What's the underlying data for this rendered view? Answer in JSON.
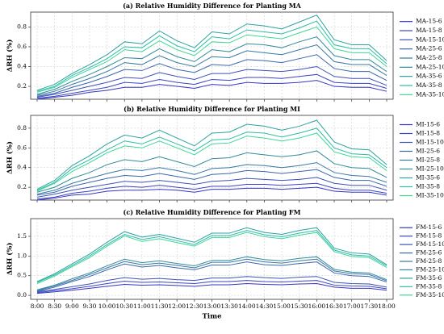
{
  "chart_data": [
    {
      "type": "line",
      "title": "(a) Relative Humidity Difference for Planting MA",
      "ylabel": "ΔRH (%)",
      "ylim": [
        0.07,
        0.95
      ],
      "yticks": [
        0.2,
        0.4,
        0.6,
        0.8
      ],
      "grid": true,
      "legend": "outside right",
      "series": [
        {
          "name": "MA-15-6",
          "color": "#3434c8",
          "values": [
            0.07,
            0.09,
            0.11,
            0.14,
            0.16,
            0.19,
            0.19,
            0.22,
            0.2,
            0.18,
            0.22,
            0.21,
            0.24,
            0.23,
            0.23,
            0.24,
            0.26,
            0.2,
            0.19,
            0.19,
            0.15
          ]
        },
        {
          "name": "MA-15-8",
          "color": "#3a44c2",
          "values": [
            0.08,
            0.1,
            0.13,
            0.16,
            0.19,
            0.24,
            0.23,
            0.27,
            0.24,
            0.22,
            0.27,
            0.26,
            0.29,
            0.29,
            0.28,
            0.3,
            0.32,
            0.24,
            0.23,
            0.23,
            0.18
          ]
        },
        {
          "name": "MA-15-10",
          "color": "#3d52ba",
          "values": [
            0.09,
            0.12,
            0.16,
            0.2,
            0.24,
            0.29,
            0.28,
            0.34,
            0.3,
            0.27,
            0.33,
            0.33,
            0.37,
            0.36,
            0.35,
            0.37,
            0.4,
            0.3,
            0.28,
            0.28,
            0.21
          ]
        },
        {
          "name": "MA-25-6",
          "color": "#3b66ae",
          "values": [
            0.1,
            0.13,
            0.19,
            0.24,
            0.3,
            0.37,
            0.36,
            0.43,
            0.37,
            0.34,
            0.42,
            0.41,
            0.47,
            0.46,
            0.44,
            0.48,
            0.52,
            0.38,
            0.35,
            0.35,
            0.26
          ]
        },
        {
          "name": "MA-25-8",
          "color": "#3778a4",
          "values": [
            0.11,
            0.15,
            0.22,
            0.28,
            0.35,
            0.44,
            0.42,
            0.51,
            0.44,
            0.4,
            0.5,
            0.49,
            0.56,
            0.54,
            0.52,
            0.57,
            0.62,
            0.45,
            0.42,
            0.42,
            0.31
          ]
        },
        {
          "name": "MA-25-10",
          "color": "#318b9b",
          "values": [
            0.12,
            0.17,
            0.25,
            0.32,
            0.4,
            0.49,
            0.48,
            0.58,
            0.5,
            0.45,
            0.57,
            0.55,
            0.63,
            0.62,
            0.59,
            0.65,
            0.7,
            0.51,
            0.47,
            0.47,
            0.35
          ]
        },
        {
          "name": "MA-35-6",
          "color": "#2ba3a2",
          "values": [
            0.16,
            0.22,
            0.33,
            0.42,
            0.52,
            0.65,
            0.63,
            0.76,
            0.66,
            0.59,
            0.75,
            0.73,
            0.83,
            0.81,
            0.78,
            0.85,
            0.92,
            0.67,
            0.62,
            0.62,
            0.46
          ]
        },
        {
          "name": "MA-35-8",
          "color": "#2dbda6",
          "values": [
            0.15,
            0.2,
            0.31,
            0.39,
            0.48,
            0.6,
            0.59,
            0.71,
            0.61,
            0.55,
            0.7,
            0.68,
            0.77,
            0.75,
            0.73,
            0.79,
            0.86,
            0.62,
            0.58,
            0.58,
            0.43
          ]
        },
        {
          "name": "MA-35-10",
          "color": "#3dd896",
          "values": [
            0.14,
            0.19,
            0.29,
            0.37,
            0.45,
            0.57,
            0.55,
            0.66,
            0.57,
            0.51,
            0.65,
            0.64,
            0.72,
            0.7,
            0.68,
            0.74,
            0.8,
            0.58,
            0.54,
            0.54,
            0.4
          ]
        }
      ]
    },
    {
      "type": "line",
      "title": "(b) Relative Humidity Difference for Planting MI",
      "ylabel": "ΔRH (%)",
      "ylim": [
        0.07,
        0.93
      ],
      "yticks": [
        0.2,
        0.4,
        0.6,
        0.8
      ],
      "grid": true,
      "legend": "outside right",
      "series": [
        {
          "name": "MI-15-6",
          "color": "#3434c8",
          "values": [
            0.07,
            0.09,
            0.12,
            0.13,
            0.16,
            0.17,
            0.17,
            0.18,
            0.17,
            0.15,
            0.18,
            0.18,
            0.19,
            0.19,
            0.18,
            0.19,
            0.2,
            0.16,
            0.15,
            0.15,
            0.12
          ]
        },
        {
          "name": "MI-15-8",
          "color": "#3a44c2",
          "values": [
            0.08,
            0.1,
            0.14,
            0.16,
            0.19,
            0.21,
            0.2,
            0.22,
            0.2,
            0.18,
            0.21,
            0.21,
            0.23,
            0.23,
            0.22,
            0.23,
            0.24,
            0.19,
            0.17,
            0.17,
            0.14
          ]
        },
        {
          "name": "MI-15-10",
          "color": "#3d52ba",
          "values": [
            0.1,
            0.13,
            0.17,
            0.2,
            0.23,
            0.26,
            0.25,
            0.27,
            0.25,
            0.23,
            0.26,
            0.27,
            0.29,
            0.28,
            0.27,
            0.28,
            0.3,
            0.24,
            0.22,
            0.22,
            0.17
          ]
        },
        {
          "name": "MI-25-6",
          "color": "#3b66ae",
          "values": [
            0.12,
            0.15,
            0.21,
            0.25,
            0.29,
            0.32,
            0.31,
            0.34,
            0.31,
            0.28,
            0.33,
            0.34,
            0.37,
            0.36,
            0.34,
            0.36,
            0.38,
            0.3,
            0.27,
            0.27,
            0.21
          ]
        },
        {
          "name": "MI-25-8",
          "color": "#3778a4",
          "values": [
            0.13,
            0.17,
            0.24,
            0.29,
            0.34,
            0.38,
            0.37,
            0.4,
            0.37,
            0.33,
            0.39,
            0.4,
            0.43,
            0.42,
            0.4,
            0.42,
            0.45,
            0.35,
            0.32,
            0.31,
            0.25
          ]
        },
        {
          "name": "MI-25-10",
          "color": "#318b9b",
          "values": [
            0.15,
            0.2,
            0.29,
            0.35,
            0.43,
            0.48,
            0.46,
            0.51,
            0.46,
            0.41,
            0.49,
            0.5,
            0.55,
            0.53,
            0.51,
            0.53,
            0.57,
            0.44,
            0.4,
            0.39,
            0.3
          ]
        },
        {
          "name": "MI-35-6",
          "color": "#2ba3a2",
          "values": [
            0.18,
            0.27,
            0.42,
            0.52,
            0.64,
            0.73,
            0.7,
            0.78,
            0.7,
            0.62,
            0.75,
            0.76,
            0.84,
            0.82,
            0.78,
            0.82,
            0.88,
            0.66,
            0.59,
            0.58,
            0.43
          ]
        },
        {
          "name": "MI-35-8",
          "color": "#2dbda6",
          "values": [
            0.17,
            0.25,
            0.39,
            0.48,
            0.58,
            0.67,
            0.64,
            0.71,
            0.64,
            0.57,
            0.68,
            0.69,
            0.76,
            0.75,
            0.71,
            0.75,
            0.8,
            0.6,
            0.54,
            0.53,
            0.4
          ]
        },
        {
          "name": "MI-35-10",
          "color": "#3dd896",
          "values": [
            0.16,
            0.24,
            0.36,
            0.45,
            0.55,
            0.62,
            0.6,
            0.67,
            0.6,
            0.53,
            0.64,
            0.65,
            0.72,
            0.7,
            0.67,
            0.7,
            0.75,
            0.56,
            0.51,
            0.5,
            0.37
          ]
        }
      ]
    },
    {
      "type": "line",
      "title": "(c) Relative Humidity Difference for Planting FM",
      "ylabel": "ΔRH (%)",
      "xlabel": "Time",
      "categories": [
        "8:00",
        "8:30",
        "9:00",
        "9:30",
        "10:00",
        "10:30",
        "11:00",
        "11:30",
        "12:00",
        "12:30",
        "13:00",
        "13:30",
        "14:00",
        "14:30",
        "15:00",
        "15:30",
        "16:00",
        "16:30",
        "17:00",
        "17:30",
        "18:00"
      ],
      "ylim": [
        -0.1,
        1.95
      ],
      "yticks": [
        {
          "value": 0,
          "label": "0.0"
        },
        0.5,
        {
          "value": 1,
          "label": "1.0"
        },
        1.5
      ],
      "grid": true,
      "legend": "outside right",
      "series": [
        {
          "name": "FM-15-6",
          "color": "#3434c8",
          "values": [
            0.05,
            0.09,
            0.13,
            0.18,
            0.23,
            0.28,
            0.26,
            0.27,
            0.25,
            0.23,
            0.27,
            0.27,
            0.3,
            0.28,
            0.27,
            0.29,
            0.3,
            0.21,
            0.18,
            0.18,
            0.13
          ]
        },
        {
          "name": "FM-15-8",
          "color": "#3a44c2",
          "values": [
            0.07,
            0.12,
            0.17,
            0.23,
            0.3,
            0.36,
            0.33,
            0.34,
            0.32,
            0.3,
            0.35,
            0.35,
            0.38,
            0.35,
            0.34,
            0.36,
            0.38,
            0.26,
            0.24,
            0.23,
            0.17
          ]
        },
        {
          "name": "FM-15-10",
          "color": "#3d52ba",
          "values": [
            0.09,
            0.15,
            0.22,
            0.29,
            0.38,
            0.45,
            0.41,
            0.43,
            0.4,
            0.38,
            0.44,
            0.44,
            0.48,
            0.45,
            0.43,
            0.46,
            0.48,
            0.33,
            0.3,
            0.29,
            0.21
          ]
        },
        {
          "name": "FM-25-6",
          "color": "#3b66ae",
          "values": [
            0.1,
            0.21,
            0.35,
            0.48,
            0.65,
            0.8,
            0.72,
            0.76,
            0.7,
            0.65,
            0.77,
            0.77,
            0.85,
            0.78,
            0.76,
            0.81,
            0.85,
            0.57,
            0.5,
            0.48,
            0.34
          ]
        },
        {
          "name": "FM-25-8",
          "color": "#3778a4",
          "values": [
            0.12,
            0.24,
            0.38,
            0.53,
            0.7,
            0.86,
            0.78,
            0.82,
            0.76,
            0.7,
            0.84,
            0.84,
            0.92,
            0.85,
            0.82,
            0.88,
            0.92,
            0.62,
            0.55,
            0.53,
            0.37
          ]
        },
        {
          "name": "FM-25-10",
          "color": "#318b9b",
          "values": [
            0.14,
            0.26,
            0.42,
            0.57,
            0.75,
            0.92,
            0.83,
            0.88,
            0.81,
            0.75,
            0.89,
            0.89,
            0.98,
            0.91,
            0.88,
            0.94,
            0.98,
            0.66,
            0.59,
            0.57,
            0.4
          ]
        },
        {
          "name": "FM-35-6",
          "color": "#2ba3a2",
          "values": [
            0.35,
            0.55,
            0.8,
            1.05,
            1.35,
            1.62,
            1.48,
            1.55,
            1.45,
            1.35,
            1.58,
            1.58,
            1.72,
            1.6,
            1.55,
            1.65,
            1.72,
            1.2,
            1.08,
            1.05,
            0.78
          ]
        },
        {
          "name": "FM-35-8",
          "color": "#2dbda6",
          "values": [
            0.33,
            0.52,
            0.76,
            1.0,
            1.29,
            1.55,
            1.42,
            1.49,
            1.39,
            1.29,
            1.52,
            1.52,
            1.65,
            1.54,
            1.49,
            1.58,
            1.65,
            1.15,
            1.03,
            1.0,
            0.75
          ]
        },
        {
          "name": "FM-35-10",
          "color": "#3dd896",
          "values": [
            0.3,
            0.49,
            0.73,
            0.96,
            1.25,
            1.51,
            1.37,
            1.44,
            1.34,
            1.25,
            1.47,
            1.47,
            1.6,
            1.49,
            1.44,
            1.53,
            1.6,
            1.11,
            0.99,
            0.96,
            0.71
          ]
        }
      ]
    }
  ]
}
